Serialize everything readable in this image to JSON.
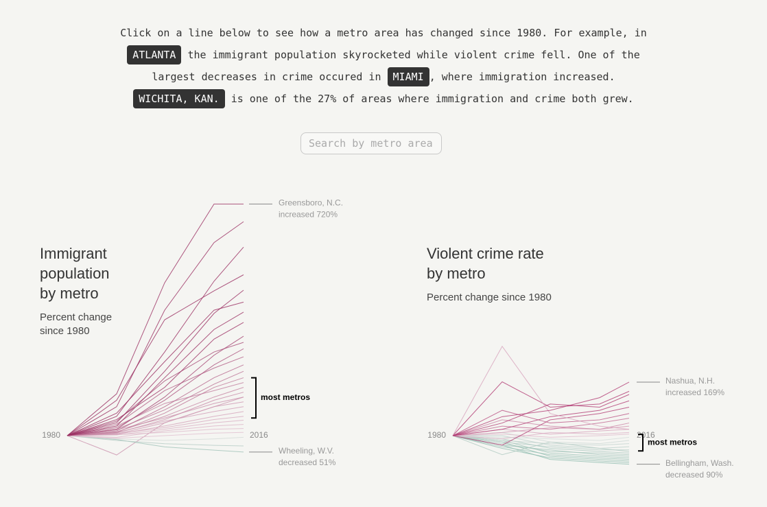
{
  "intro": [
    [
      {
        "text": "Click on a line below to see how a metro area has changed since 1980. For example, in"
      }
    ],
    [
      {
        "tag": "ATLANTA"
      },
      {
        "text": " the immigrant population skyrocketed while violent crime fell. One of the"
      }
    ],
    [
      {
        "text": "largest decreases in crime occured in "
      },
      {
        "tag": "MIAMI"
      },
      {
        "text": ", where immigration increased."
      }
    ],
    [
      {
        "tag": "WICHITA, KAN."
      },
      {
        "text": " is one of the 27% of areas where immigration and crime both grew."
      }
    ]
  ],
  "search": {
    "placeholder": "Search by metro area"
  },
  "chart_data": [
    {
      "type": "line",
      "title": [
        "Immigrant",
        "population",
        "by metro"
      ],
      "subtitle": [
        "Percent change",
        "since 1980"
      ],
      "start_label": "1980",
      "end_label": "2016",
      "ylim": [
        -100,
        800
      ],
      "colors": {
        "increase": "#9a2d60",
        "decrease": "#9fc2b7"
      },
      "annotations": {
        "top": [
          "Greensboro, N.C.",
          "increased 720%"
        ],
        "bottom": [
          "Wheeling, W.V.",
          "decreased 51%"
        ]
      },
      "most_metros": {
        "label": "most metros",
        "range": [
          55,
          180
        ]
      },
      "lines": [
        [
          0,
          -60,
          40,
          90,
          120
        ],
        [
          0,
          -12,
          -35,
          -45,
          -51
        ],
        [
          0,
          -15,
          -25,
          -30,
          -32
        ],
        [
          0,
          -10,
          -15,
          -10,
          -5
        ],
        [
          0,
          -8,
          0,
          8,
          10
        ],
        [
          0,
          3,
          10,
          20,
          22
        ],
        [
          0,
          -5,
          15,
          30,
          35
        ],
        [
          0,
          2,
          20,
          40,
          48
        ],
        [
          0,
          6,
          25,
          50,
          60
        ],
        [
          0,
          4,
          30,
          60,
          75
        ],
        [
          0,
          10,
          45,
          75,
          90
        ],
        [
          0,
          5,
          40,
          90,
          105
        ],
        [
          0,
          18,
          55,
          100,
          120
        ],
        [
          0,
          8,
          50,
          110,
          135
        ],
        [
          0,
          12,
          60,
          120,
          150
        ],
        [
          0,
          30,
          100,
          140,
          165
        ],
        [
          0,
          10,
          70,
          150,
          180
        ],
        [
          0,
          20,
          80,
          160,
          200
        ],
        [
          0,
          15,
          90,
          180,
          220
        ],
        [
          0,
          35,
          140,
          210,
          245
        ],
        [
          0,
          25,
          110,
          220,
          270
        ],
        [
          0,
          45,
          170,
          260,
          290
        ],
        [
          0,
          20,
          120,
          250,
          309
        ],
        [
          0,
          50,
          150,
          300,
          352
        ],
        [
          0,
          30,
          180,
          330,
          384
        ],
        [
          0,
          70,
          230,
          390,
          415
        ],
        [
          0,
          40,
          200,
          380,
          452
        ],
        [
          0,
          110,
          360,
          450,
          500
        ],
        [
          0,
          60,
          260,
          480,
          586
        ],
        [
          0,
          90,
          390,
          600,
          665
        ],
        [
          0,
          130,
          475,
          720,
          720
        ]
      ]
    },
    {
      "type": "line",
      "title": [
        "Violent crime rate",
        "by metro"
      ],
      "subtitle": [
        "Percent change since 1980"
      ],
      "start_label": "1980",
      "end_label": "2016",
      "ylim": [
        -100,
        300
      ],
      "colors": {
        "increase": "#b23b73",
        "decrease": "#8fbcae"
      },
      "annotations": {
        "top": [
          "Nashua, N.H.",
          "increased 169%"
        ],
        "bottom": [
          "Bellingham, Wash.",
          "decreased 90%"
        ]
      },
      "most_metros": {
        "label": "most metros",
        "range": [
          -48,
          4
        ]
      },
      "lines": [
        [
          0,
          -30,
          -75,
          -85,
          -90
        ],
        [
          0,
          -40,
          -70,
          -80,
          -85
        ],
        [
          0,
          -20,
          -65,
          -75,
          -80
        ],
        [
          0,
          -35,
          -60,
          -70,
          -75
        ],
        [
          0,
          -15,
          -55,
          -65,
          -70
        ],
        [
          0,
          -30,
          -45,
          -60,
          -65
        ],
        [
          0,
          -25,
          -50,
          -55,
          -60
        ],
        [
          0,
          -10,
          -40,
          -50,
          -55
        ],
        [
          0,
          -60,
          -20,
          -40,
          -50
        ],
        [
          0,
          -20,
          -35,
          -45,
          -45
        ],
        [
          0,
          0,
          -30,
          -40,
          -35
        ],
        [
          0,
          -15,
          -25,
          -30,
          -25
        ],
        [
          0,
          10,
          -20,
          -25,
          -15
        ],
        [
          0,
          -5,
          -10,
          -15,
          -5
        ],
        [
          0,
          5,
          -5,
          0,
          5
        ],
        [
          0,
          -10,
          10,
          5,
          10
        ],
        [
          0,
          20,
          5,
          15,
          20
        ],
        [
          0,
          10,
          25,
          20,
          30
        ],
        [
          0,
          50,
          30,
          20,
          40
        ],
        [
          0,
          30,
          20,
          40,
          55
        ],
        [
          0,
          80,
          40,
          50,
          70
        ],
        [
          0,
          -30,
          50,
          70,
          90
        ],
        [
          0,
          20,
          60,
          80,
          110
        ],
        [
          0,
          40,
          100,
          90,
          130
        ],
        [
          0,
          170,
          90,
          100,
          140
        ],
        [
          0,
          282,
          70,
          30,
          20
        ],
        [
          0,
          60,
          80,
          120,
          169
        ]
      ]
    }
  ]
}
